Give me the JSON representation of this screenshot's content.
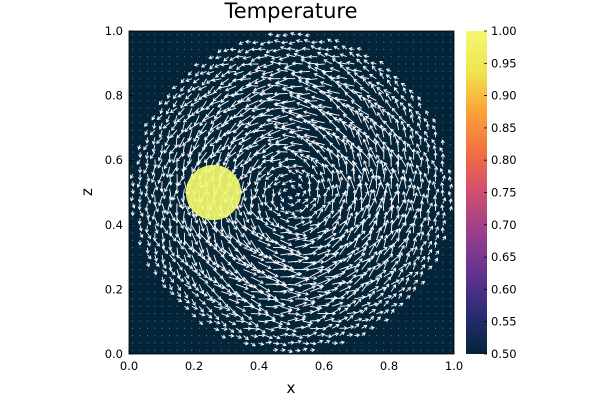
{
  "chart_data": {
    "type": "heatmap",
    "title": "Temperature",
    "xlabel": "x",
    "ylabel": "z",
    "xlim": [
      0.0,
      1.0
    ],
    "ylim": [
      0.0,
      1.0
    ],
    "x_ticks": [
      "0.0",
      "0.2",
      "0.4",
      "0.6",
      "0.8",
      "1.0"
    ],
    "y_ticks": [
      "0.0",
      "0.2",
      "0.4",
      "0.6",
      "0.8",
      "1.0"
    ],
    "colorbar": {
      "range": [
        0.5,
        1.0
      ],
      "ticks": [
        "0.50",
        "0.55",
        "0.60",
        "0.65",
        "0.70",
        "0.75",
        "0.80",
        "0.85",
        "0.90",
        "0.95",
        "1.00"
      ],
      "colors": [
        "#04243a",
        "#2b2c74",
        "#63348f",
        "#9a3f8d",
        "#d04e6f",
        "#f26f43",
        "#fba237",
        "#f0e451",
        "#f2f870"
      ]
    },
    "background_value": 0.5,
    "hot_blob": {
      "center_x": 0.26,
      "center_z": 0.5,
      "radius": 0.085,
      "value": 1.0
    },
    "vector_field": {
      "pattern": "rotating vortex",
      "center_x": 0.5,
      "center_z": 0.5,
      "radius": 0.5,
      "arrow_color": "#ffffff"
    },
    "grid": false,
    "legend": "none"
  }
}
